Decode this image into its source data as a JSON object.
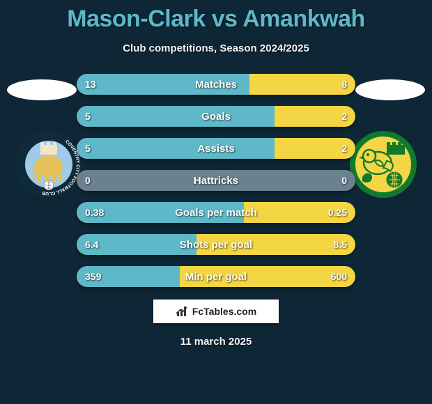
{
  "title": "Mason-Clark vs Amankwah",
  "subtitle": "Club competitions, Season 2024/2025",
  "footer_brand": "FcTables.com",
  "footer_date": "11 march 2025",
  "colors": {
    "background": "#0e2636",
    "title": "#5eb8c8",
    "left_bar": "#5eb8c8",
    "right_bar": "#f4d644",
    "neutral_bar": "#6a8290"
  },
  "stats": [
    {
      "label": "Matches",
      "left_val": "13",
      "right_val": "8",
      "left_pct": 62,
      "right_pct": 38
    },
    {
      "label": "Goals",
      "left_val": "5",
      "right_val": "2",
      "left_pct": 71,
      "right_pct": 29
    },
    {
      "label": "Assists",
      "left_val": "5",
      "right_val": "2",
      "left_pct": 71,
      "right_pct": 29
    },
    {
      "label": "Hattricks",
      "left_val": "0",
      "right_val": "0",
      "left_pct": 0,
      "right_pct": 0
    },
    {
      "label": "Goals per match",
      "left_val": "0.38",
      "right_val": "0.25",
      "left_pct": 60,
      "right_pct": 40
    },
    {
      "label": "Shots per goal",
      "left_val": "6.4",
      "right_val": "8.5",
      "left_pct": 43,
      "right_pct": 57
    },
    {
      "label": "Min per goal",
      "left_val": "359",
      "right_val": "600",
      "left_pct": 37,
      "right_pct": 63
    }
  ],
  "badges": {
    "left": {
      "name": "coventry-city-badge",
      "ring_text": "COVENTRY CITY · FOOTBALL CLUB",
      "ring_bg": "#0f2a3a",
      "ring_text_color": "#ffffff",
      "inner_bg": "#9fcbe8",
      "elephant_color": "#e6c25a",
      "castle_color": "#f0e6c8",
      "ball_color": "#ffffff"
    },
    "right": {
      "name": "norwich-city-badge",
      "outer_bg": "#0f7a2e",
      "inner_bg": "#f4d644",
      "canary_color": "#f4d644",
      "canary_outline": "#0f7a2e",
      "ball_color": "#0f7a2e",
      "castle_color": "#0f7a2e"
    }
  }
}
